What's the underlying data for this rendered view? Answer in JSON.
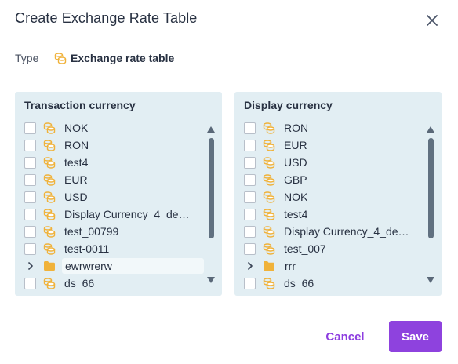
{
  "dialog": {
    "title": "Create Exchange Rate Table",
    "type_label": "Type",
    "type_value": "Exchange rate table"
  },
  "left_panel": {
    "title": "Transaction currency",
    "items": [
      {
        "label": "NOK",
        "kind": "table"
      },
      {
        "label": "RON",
        "kind": "table"
      },
      {
        "label": "test4",
        "kind": "table"
      },
      {
        "label": "EUR",
        "kind": "table"
      },
      {
        "label": "USD",
        "kind": "table"
      },
      {
        "label": "Display Currency_4_deci…",
        "kind": "table"
      },
      {
        "label": "test_00799",
        "kind": "table"
      },
      {
        "label": "test-0011",
        "kind": "table"
      },
      {
        "label": "ewrwrerw",
        "kind": "folder"
      },
      {
        "label": "ds_66",
        "kind": "table"
      }
    ]
  },
  "right_panel": {
    "title": "Display currency",
    "items": [
      {
        "label": "RON",
        "kind": "table"
      },
      {
        "label": "EUR",
        "kind": "table"
      },
      {
        "label": "USD",
        "kind": "table"
      },
      {
        "label": "GBP",
        "kind": "table"
      },
      {
        "label": "NOK",
        "kind": "table"
      },
      {
        "label": "test4",
        "kind": "table"
      },
      {
        "label": "Display Currency_4_deci…",
        "kind": "table"
      },
      {
        "label": "test_007",
        "kind": "table"
      },
      {
        "label": "rrr",
        "kind": "folder"
      },
      {
        "label": "ds_66",
        "kind": "table"
      }
    ]
  },
  "footer": {
    "cancel_label": "Cancel",
    "save_label": "Save"
  },
  "colors": {
    "accent": "#8e42de",
    "panel_bg": "#e2eef3",
    "icon_gold": "#f0b23a",
    "text": "#283142"
  }
}
